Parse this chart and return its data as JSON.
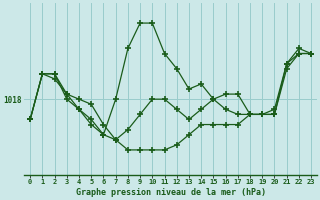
{
  "title": "Graphe pression niveau de la mer (hPa)",
  "xlabel_hours": [
    0,
    1,
    2,
    3,
    4,
    5,
    6,
    7,
    8,
    9,
    10,
    11,
    12,
    13,
    14,
    15,
    16,
    17,
    18,
    19,
    20,
    21,
    22,
    23
  ],
  "background_color": "#cce8e8",
  "grid_color": "#99cccc",
  "line_color": "#1a5c1a",
  "ref_pressure": 1018,
  "series1": [
    1016.0,
    1020.5,
    1020.5,
    1018.5,
    1017.0,
    1015.5,
    1014.5,
    1018.0,
    1023.0,
    1025.5,
    1025.5,
    1022.5,
    1021.0,
    1019.0,
    1019.5,
    1018.0,
    1017.0,
    1016.5,
    1016.5,
    1016.5,
    1017.0,
    1021.5,
    1022.5,
    1022.5
  ],
  "series2": [
    1016.0,
    1020.5,
    1020.5,
    1018.0,
    1017.0,
    1016.0,
    1014.5,
    1014.0,
    1015.0,
    1016.5,
    1018.0,
    1018.0,
    1017.0,
    1016.0,
    1017.0,
    1018.0,
    1018.5,
    1018.5,
    1016.5,
    1016.5,
    1016.5,
    1021.0,
    1022.5,
    1022.5
  ],
  "series3": [
    1016.0,
    1020.5,
    1020.0,
    1018.5,
    1018.0,
    1017.5,
    1015.5,
    1014.0,
    1013.0,
    1013.0,
    1013.0,
    1013.0,
    1013.5,
    1014.5,
    1015.5,
    1015.5,
    1015.5,
    1015.5,
    1016.5,
    1016.5,
    1016.5,
    1021.5,
    1023.0,
    1022.5
  ],
  "ylim_min": 1010.5,
  "ylim_max": 1027.5,
  "ref_ytick": 1018
}
